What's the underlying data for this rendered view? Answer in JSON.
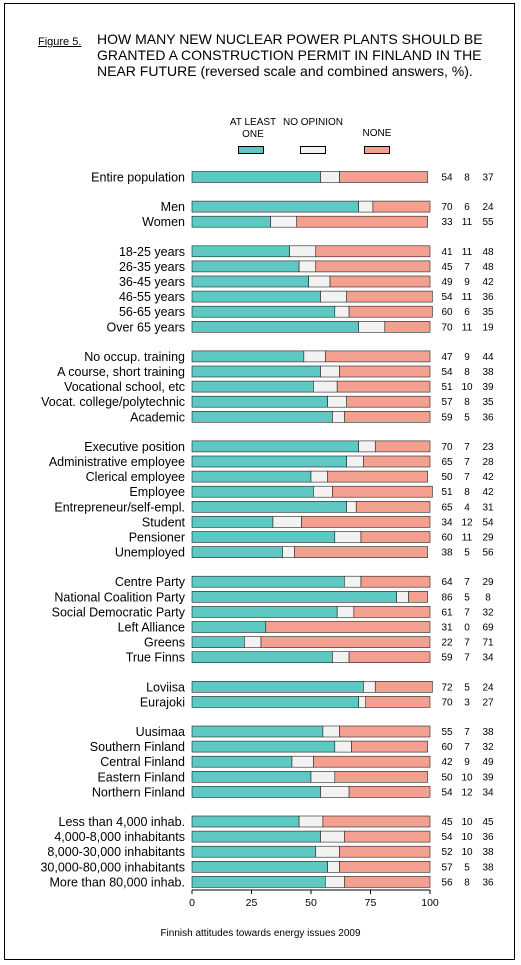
{
  "figure": {
    "label": "Figure 5.",
    "title": "HOW MANY NEW NUCLEAR POWER PLANTS SHOULD BE GRANTED A CONSTRUCTION PERMIT IN FINLAND IN THE NEAR FUTURE (reversed scale and combined answers, %).",
    "source": "Finnish attitudes towards energy issues 2009"
  },
  "chart_data": {
    "type": "bar",
    "stacked": true,
    "orientation": "horizontal",
    "xlim": [
      0,
      100
    ],
    "x_ticks": [
      "0",
      "25",
      "50",
      "75",
      "100"
    ],
    "grid": false,
    "legend_position": "top",
    "series": [
      {
        "name": "AT LEAST ONE",
        "color": "#5ec9c3"
      },
      {
        "name": "NO OPINION",
        "color": "#f2f2f2"
      },
      {
        "name": "NONE",
        "color": "#f4a090"
      }
    ],
    "groups": [
      {
        "rows": [
          {
            "label": "Entire population",
            "values": [
              54,
              8,
              37
            ]
          }
        ]
      },
      {
        "rows": [
          {
            "label": "Men",
            "values": [
              70,
              6,
              24
            ]
          },
          {
            "label": "Women",
            "values": [
              33,
              11,
              55
            ]
          }
        ]
      },
      {
        "rows": [
          {
            "label": "18-25 years",
            "values": [
              41,
              11,
              48
            ]
          },
          {
            "label": "26-35 years",
            "values": [
              45,
              7,
              48
            ]
          },
          {
            "label": "36-45 years",
            "values": [
              49,
              9,
              42
            ]
          },
          {
            "label": "46-55 years",
            "values": [
              54,
              11,
              36
            ]
          },
          {
            "label": "56-65 years",
            "values": [
              60,
              6,
              35
            ]
          },
          {
            "label": "Over 65 years",
            "values": [
              70,
              11,
              19
            ]
          }
        ]
      },
      {
        "rows": [
          {
            "label": "No occup. training",
            "values": [
              47,
              9,
              44
            ]
          },
          {
            "label": "A course, short training",
            "values": [
              54,
              8,
              38
            ]
          },
          {
            "label": "Vocational school, etc",
            "values": [
              51,
              10,
              39
            ]
          },
          {
            "label": "Vocat. college/polytechnic",
            "values": [
              57,
              8,
              35
            ]
          },
          {
            "label": "Academic",
            "values": [
              59,
              5,
              36
            ]
          }
        ]
      },
      {
        "rows": [
          {
            "label": "Executive position",
            "values": [
              70,
              7,
              23
            ]
          },
          {
            "label": "Administrative employee",
            "values": [
              65,
              7,
              28
            ]
          },
          {
            "label": "Clerical employee",
            "values": [
              50,
              7,
              42
            ]
          },
          {
            "label": "Employee",
            "values": [
              51,
              8,
              42
            ]
          },
          {
            "label": "Entrepreneur/self-empl.",
            "values": [
              65,
              4,
              31
            ]
          },
          {
            "label": "Student",
            "values": [
              34,
              12,
              54
            ]
          },
          {
            "label": "Pensioner",
            "values": [
              60,
              11,
              29
            ]
          },
          {
            "label": "Unemployed",
            "values": [
              38,
              5,
              56
            ]
          }
        ]
      },
      {
        "rows": [
          {
            "label": "Centre Party",
            "values": [
              64,
              7,
              29
            ]
          },
          {
            "label": "National Coalition Party",
            "values": [
              86,
              5,
              8
            ]
          },
          {
            "label": "Social Democratic Party",
            "values": [
              61,
              7,
              32
            ]
          },
          {
            "label": "Left Alliance",
            "values": [
              31,
              0,
              69
            ]
          },
          {
            "label": "Greens",
            "values": [
              22,
              7,
              71
            ]
          },
          {
            "label": "True Finns",
            "values": [
              59,
              7,
              34
            ]
          }
        ]
      },
      {
        "rows": [
          {
            "label": "Loviisa",
            "values": [
              72,
              5,
              24
            ]
          },
          {
            "label": "Eurajoki",
            "values": [
              70,
              3,
              27
            ]
          }
        ]
      },
      {
        "rows": [
          {
            "label": "Uusimaa",
            "values": [
              55,
              7,
              38
            ]
          },
          {
            "label": "Southern Finland",
            "values": [
              60,
              7,
              32
            ]
          },
          {
            "label": "Central Finland",
            "values": [
              42,
              9,
              49
            ]
          },
          {
            "label": "Eastern Finland",
            "values": [
              50,
              10,
              39
            ]
          },
          {
            "label": "Northern Finland",
            "values": [
              54,
              12,
              34
            ]
          }
        ]
      },
      {
        "rows": [
          {
            "label": "Less than 4,000 inhab.",
            "values": [
              45,
              10,
              45
            ]
          },
          {
            "label": "4,000-8,000 inhabitants",
            "values": [
              54,
              10,
              36
            ]
          },
          {
            "label": "8,000-30,000 inhabitants",
            "values": [
              52,
              10,
              38
            ]
          },
          {
            "label": "30,000-80,000 inhabitants",
            "values": [
              57,
              5,
              38
            ]
          },
          {
            "label": "More than 80,000 inhab.",
            "values": [
              56,
              8,
              36
            ]
          }
        ]
      }
    ]
  }
}
